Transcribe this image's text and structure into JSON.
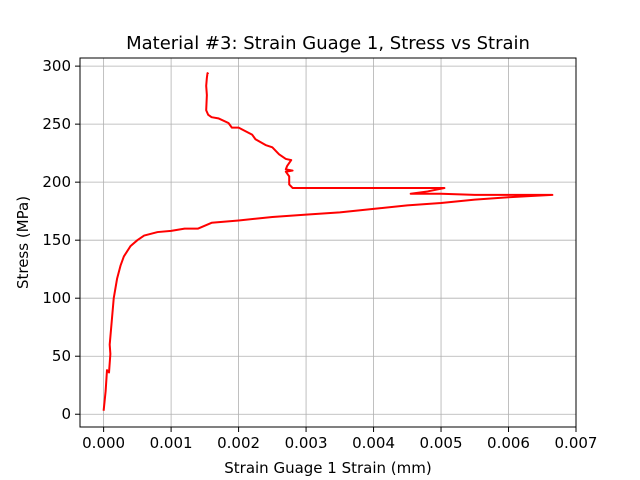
{
  "chart_data": {
    "type": "line",
    "title": "Material #3: Strain Guage 1, Stress vs Strain",
    "xlabel": "Strain Guage 1 Strain (mm)",
    "ylabel": "Stress (MPa)",
    "xlim": [
      -0.00035,
      0.007
    ],
    "ylim": [
      -11,
      307
    ],
    "xticks": [
      0.0,
      0.001,
      0.002,
      0.003,
      0.004,
      0.005,
      0.006,
      0.007
    ],
    "xtick_labels": [
      "0.000",
      "0.001",
      "0.002",
      "0.003",
      "0.004",
      "0.005",
      "0.006",
      "0.007"
    ],
    "yticks": [
      0,
      50,
      100,
      150,
      200,
      250,
      300
    ],
    "ytick_labels": [
      "0",
      "50",
      "100",
      "150",
      "200",
      "250",
      "300"
    ],
    "grid": true,
    "legend": "none",
    "series": [
      {
        "color": "#ff0000",
        "x": [
          0.0,
          3e-05,
          5e-05,
          8e-05,
          0.0001,
          9e-05,
          0.00012,
          0.00015,
          0.0002,
          0.00025,
          0.0003,
          0.0004,
          0.0005,
          0.0006,
          0.0008,
          0.001,
          0.0012,
          0.0014,
          0.0016,
          0.002,
          0.0025,
          0.003,
          0.0035,
          0.004,
          0.0045,
          0.005,
          0.0055,
          0.006,
          0.0063,
          0.00665,
          0.006,
          0.0055,
          0.005,
          0.0046,
          0.00455,
          0.0048,
          0.00505,
          0.0049,
          0.0045,
          0.004,
          0.0035,
          0.003,
          0.0028,
          0.00275,
          0.00275,
          0.0027,
          0.0028,
          0.0027,
          0.00272,
          0.00278,
          0.0027,
          0.0026,
          0.0025,
          0.0024,
          0.00225,
          0.0022,
          0.0021,
          0.002,
          0.0019,
          0.00185,
          0.0017,
          0.0016,
          0.00155,
          0.00152,
          0.00153,
          0.00152,
          0.00153,
          0.00154,
          0.00155
        ],
        "y": [
          3,
          20,
          38,
          36,
          52,
          60,
          80,
          100,
          117,
          128,
          136,
          145,
          150,
          154,
          157,
          158,
          160,
          160,
          165,
          167,
          170,
          172,
          174,
          177,
          180,
          182,
          185,
          187,
          188,
          189,
          189,
          189,
          190,
          190,
          190,
          192,
          195,
          195,
          195,
          195,
          195,
          195,
          195,
          198,
          205,
          209,
          210,
          211,
          214,
          219,
          220,
          224,
          230,
          232,
          237,
          241,
          244,
          247,
          247,
          251,
          255,
          256,
          258,
          262,
          275,
          283,
          290,
          294,
          293
        ]
      }
    ]
  }
}
